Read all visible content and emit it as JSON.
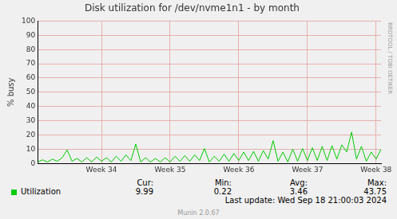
{
  "chart_data": {
    "type": "line",
    "title": "Disk utilization for /dev/nvme1n1 - by month",
    "y_label": "% busy",
    "x": [
      0,
      0.5,
      1,
      1.5,
      2,
      2.5,
      3,
      3.5,
      4,
      4.5,
      5,
      5.5,
      6,
      6.5,
      7,
      7.5,
      8,
      8.5,
      9,
      9.5,
      10,
      10.5,
      11,
      11.5,
      12,
      12.5,
      13,
      13.5,
      14,
      14.5,
      15,
      15.5,
      16,
      16.5,
      17,
      17.5,
      18,
      18.5,
      19,
      19.5,
      20,
      20.5,
      21,
      21.5,
      22,
      22.5,
      23,
      23.5,
      24,
      24.5,
      25,
      25.5,
      26,
      26.5,
      27,
      27.5,
      28,
      28.5,
      29,
      29.5,
      30,
      30.5,
      31,
      31.5,
      32,
      32.5,
      33,
      33.5,
      34,
      34.5,
      35
    ],
    "series": [
      {
        "name": "Utilization",
        "color": "#00cc00",
        "values": [
          1,
          2.5,
          1,
          3,
          1.5,
          4,
          9.5,
          1.5,
          3.5,
          1,
          4,
          1,
          4.5,
          1.5,
          4,
          1,
          5,
          1.5,
          6,
          2,
          13.5,
          1,
          4,
          1,
          3.5,
          1,
          4,
          1,
          5,
          1.5,
          5.5,
          1.5,
          6,
          2,
          10.5,
          1,
          5,
          1.5,
          6.5,
          1.5,
          7,
          2,
          8,
          2,
          8.5,
          1.5,
          9,
          3,
          16,
          1.5,
          8,
          1,
          10,
          1.5,
          10.5,
          2,
          11,
          2,
          12,
          2,
          12.5,
          3,
          13,
          8,
          22,
          3,
          12,
          1.5,
          8,
          3,
          10
        ]
      }
    ],
    "xlim": [
      0,
      35
    ],
    "xticks": [
      {
        "value": 6.5,
        "label": "Week 34"
      },
      {
        "value": 13.5,
        "label": "Week 35"
      },
      {
        "value": 20.5,
        "label": "Week 36"
      },
      {
        "value": 27.5,
        "label": "Week 37"
      },
      {
        "value": 34.5,
        "label": "Week 38"
      }
    ],
    "ylim": [
      0,
      100
    ],
    "yticks": [
      0,
      10,
      20,
      30,
      40,
      50,
      60,
      70,
      80,
      90,
      100
    ],
    "grid": true,
    "summary": {
      "labels": [
        "Cur:",
        "Min:",
        "Avg:",
        "Max:"
      ],
      "values": [
        9.99,
        0.22,
        3.46,
        43.75
      ]
    },
    "last_update": "Last update: Wed Sep 18 21:00:03 2024",
    "footer": "Munin 2.0.67",
    "side_text": "RRDTOOL / TOBI OETIKER"
  }
}
